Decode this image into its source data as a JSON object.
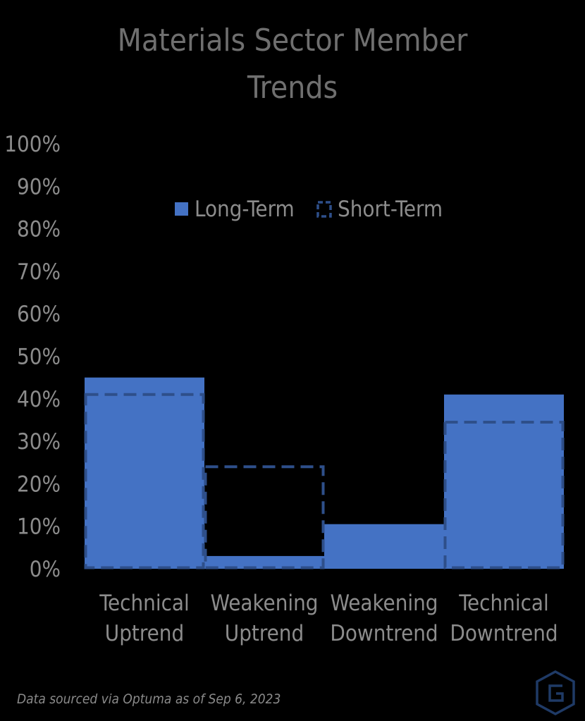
{
  "chart_data": {
    "type": "bar",
    "title_line1": "Materials Sector Member",
    "title_line2": "Trends",
    "categories": [
      {
        "line1": "Technical",
        "line2": "Uptrend"
      },
      {
        "line1": "Weakening",
        "line2": "Uptrend"
      },
      {
        "line1": "Weakening",
        "line2": "Downtrend"
      },
      {
        "line1": "Technical",
        "line2": "Downtrend"
      }
    ],
    "series": [
      {
        "name": "Long-Term",
        "style": "filled",
        "color": "#4472c4",
        "values": [
          45,
          3,
          10.5,
          41
        ]
      },
      {
        "name": "Short-Term",
        "style": "dashed-outline",
        "color": "#2e4f8a",
        "values": [
          41,
          24,
          0,
          34.5
        ]
      }
    ],
    "y_ticks": [
      "0%",
      "10%",
      "20%",
      "30%",
      "40%",
      "50%",
      "60%",
      "70%",
      "80%",
      "90%",
      "100%"
    ],
    "ylim": [
      0,
      100
    ],
    "grid": false,
    "legend_position": "top-center, inside plot"
  },
  "footnote": "Data sourced via Optuma as of Sep 6, 2023",
  "logo_icon": "hexagon-g-logo-icon"
}
